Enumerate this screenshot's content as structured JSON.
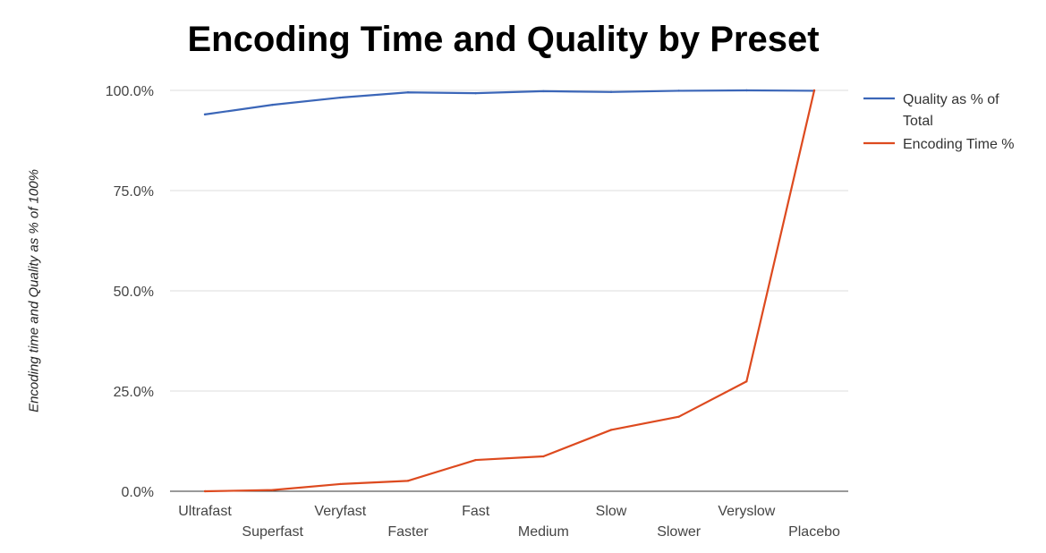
{
  "chart_data": {
    "type": "line",
    "title": "Encoding Time and Quality by Preset",
    "ylabel": "Encoding time and Quality as % of 100%",
    "xlabel": "",
    "categories": [
      "Ultrafast",
      "Superfast",
      "Veryfast",
      "Faster",
      "Fast",
      "Medium",
      "Slow",
      "Slower",
      "Veryslow",
      "Placebo"
    ],
    "y_ticks": [
      "0.0%",
      "25.0%",
      "50.0%",
      "75.0%",
      "100.0%"
    ],
    "ylim": [
      0,
      100
    ],
    "grid": true,
    "legend_position": "right",
    "series": [
      {
        "name_lines": [
          "Quality as % of",
          "Total"
        ],
        "color": "#3b66b8",
        "values": [
          94.0,
          96.4,
          98.2,
          99.5,
          99.3,
          99.8,
          99.6,
          99.9,
          100.0,
          99.9
        ]
      },
      {
        "name_lines": [
          "Encoding Time %"
        ],
        "color": "#dd4a1f",
        "values": [
          0.0,
          0.3,
          1.8,
          2.6,
          7.8,
          8.7,
          15.3,
          18.6,
          27.4,
          100.0
        ]
      }
    ]
  }
}
